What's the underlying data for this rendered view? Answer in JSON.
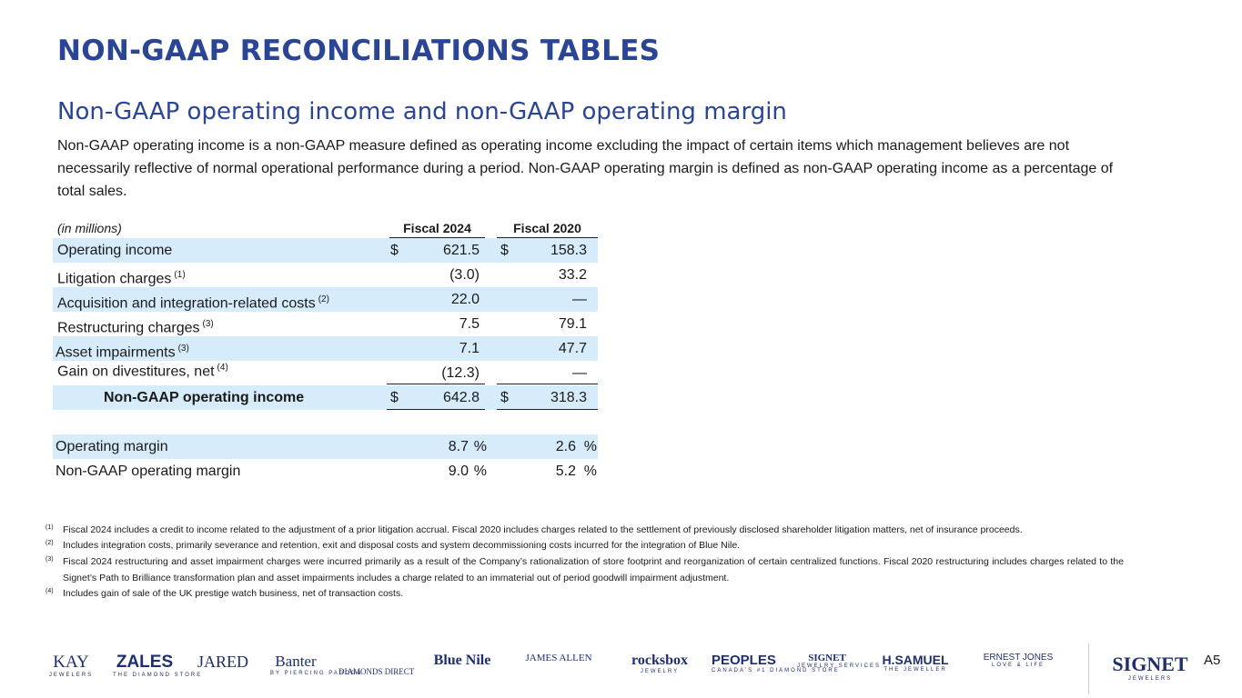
{
  "title": "NON-GAAP RECONCILIATIONS TABLES",
  "subtitle": "Non-GAAP operating income and non-GAAP operating margin",
  "intro": "Non-GAAP operating income is a non-GAAP measure defined as operating income excluding the impact of certain items which management believes are not necessarily reflective of normal operational performance during a period. Non-GAAP operating margin is defined as non-GAAP operating income as a percentage of total sales.",
  "table": {
    "unit_label": "(in millions)",
    "columns": [
      "Fiscal 2024",
      "Fiscal 2020"
    ],
    "rows": [
      {
        "label": "Operating income",
        "currency": "$",
        "values": [
          "621.5",
          "158.3"
        ]
      },
      {
        "label": "Litigation charges",
        "note": "(1)",
        "values": [
          "(3.0)",
          "33.2"
        ]
      },
      {
        "label": "Acquisition and integration-related costs",
        "note": "(2)",
        "values": [
          "22.0",
          "—"
        ]
      },
      {
        "label": "Restructuring charges",
        "note": "(3)",
        "values": [
          "7.5",
          "79.1"
        ]
      },
      {
        "label": "Asset impairments",
        "note": "(3)",
        "values": [
          "7.1",
          "47.7"
        ]
      },
      {
        "label": "Gain on divestitures, net",
        "note": "(4)",
        "values": [
          "(12.3)",
          "—"
        ]
      },
      {
        "label": "Non-GAAP operating income",
        "currency": "$",
        "values": [
          "642.8",
          "318.3"
        ]
      },
      {
        "label": "Operating margin",
        "unit": "%",
        "values": [
          "8.7",
          "2.6"
        ]
      },
      {
        "label": "Non-GAAP operating margin",
        "unit": "%",
        "values": [
          "9.0",
          "5.2"
        ]
      }
    ]
  },
  "footnotes": [
    {
      "marker": "(1)",
      "text": "Fiscal 2024 includes a credit to income related to the adjustment of a prior litigation accrual. Fiscal 2020 includes charges related to the settlement of previously disclosed shareholder litigation matters, net of insurance proceeds."
    },
    {
      "marker": "(2)",
      "text": "Includes integration costs, primarily severance and retention, exit and disposal costs and system decommissioning costs incurred for the integration of Blue Nile."
    },
    {
      "marker": "(3)",
      "text": "Fiscal 2024 restructuring and asset impairment charges were incurred primarily as a result of the Company’s rationalization of store footprint and reorganization of certain centralized functions. Fiscal 2020 restructuring includes charges related to the Signet’s Path to Brilliance transformation plan and asset impairments includes a charge related to an immaterial out of period goodwill impairment adjustment."
    },
    {
      "marker": "(4)",
      "text": "Includes gain of sale of the UK prestige watch business, net of transaction costs."
    }
  ],
  "brands": [
    {
      "name": "KAY",
      "tagline": "JEWELERS"
    },
    {
      "name": "ZALES",
      "tagline": "THE DIAMOND STORE"
    },
    {
      "name": "JARED"
    },
    {
      "name": "Banter",
      "tagline": "BY PIERCING PAGODA"
    },
    {
      "name": "DIAMONDS DIRECT"
    },
    {
      "name": "Blue Nile"
    },
    {
      "name": "JAMES ALLEN"
    },
    {
      "name": "rocksbox",
      "tagline": "JEWELRY"
    },
    {
      "name": "PEOPLES",
      "tagline": "CANADA'S #1 DIAMOND STORE"
    },
    {
      "name": "SIGNET",
      "tagline": "JEWELRY SERVICES"
    },
    {
      "name": "H.SAMUEL",
      "tagline": "THE JEWELLER"
    },
    {
      "name": "ERNEST JONES",
      "tagline": "LOVE & LIFE"
    },
    {
      "name": "SIGNET",
      "tagline": "JEWELERS"
    }
  ],
  "page_number": "A5"
}
